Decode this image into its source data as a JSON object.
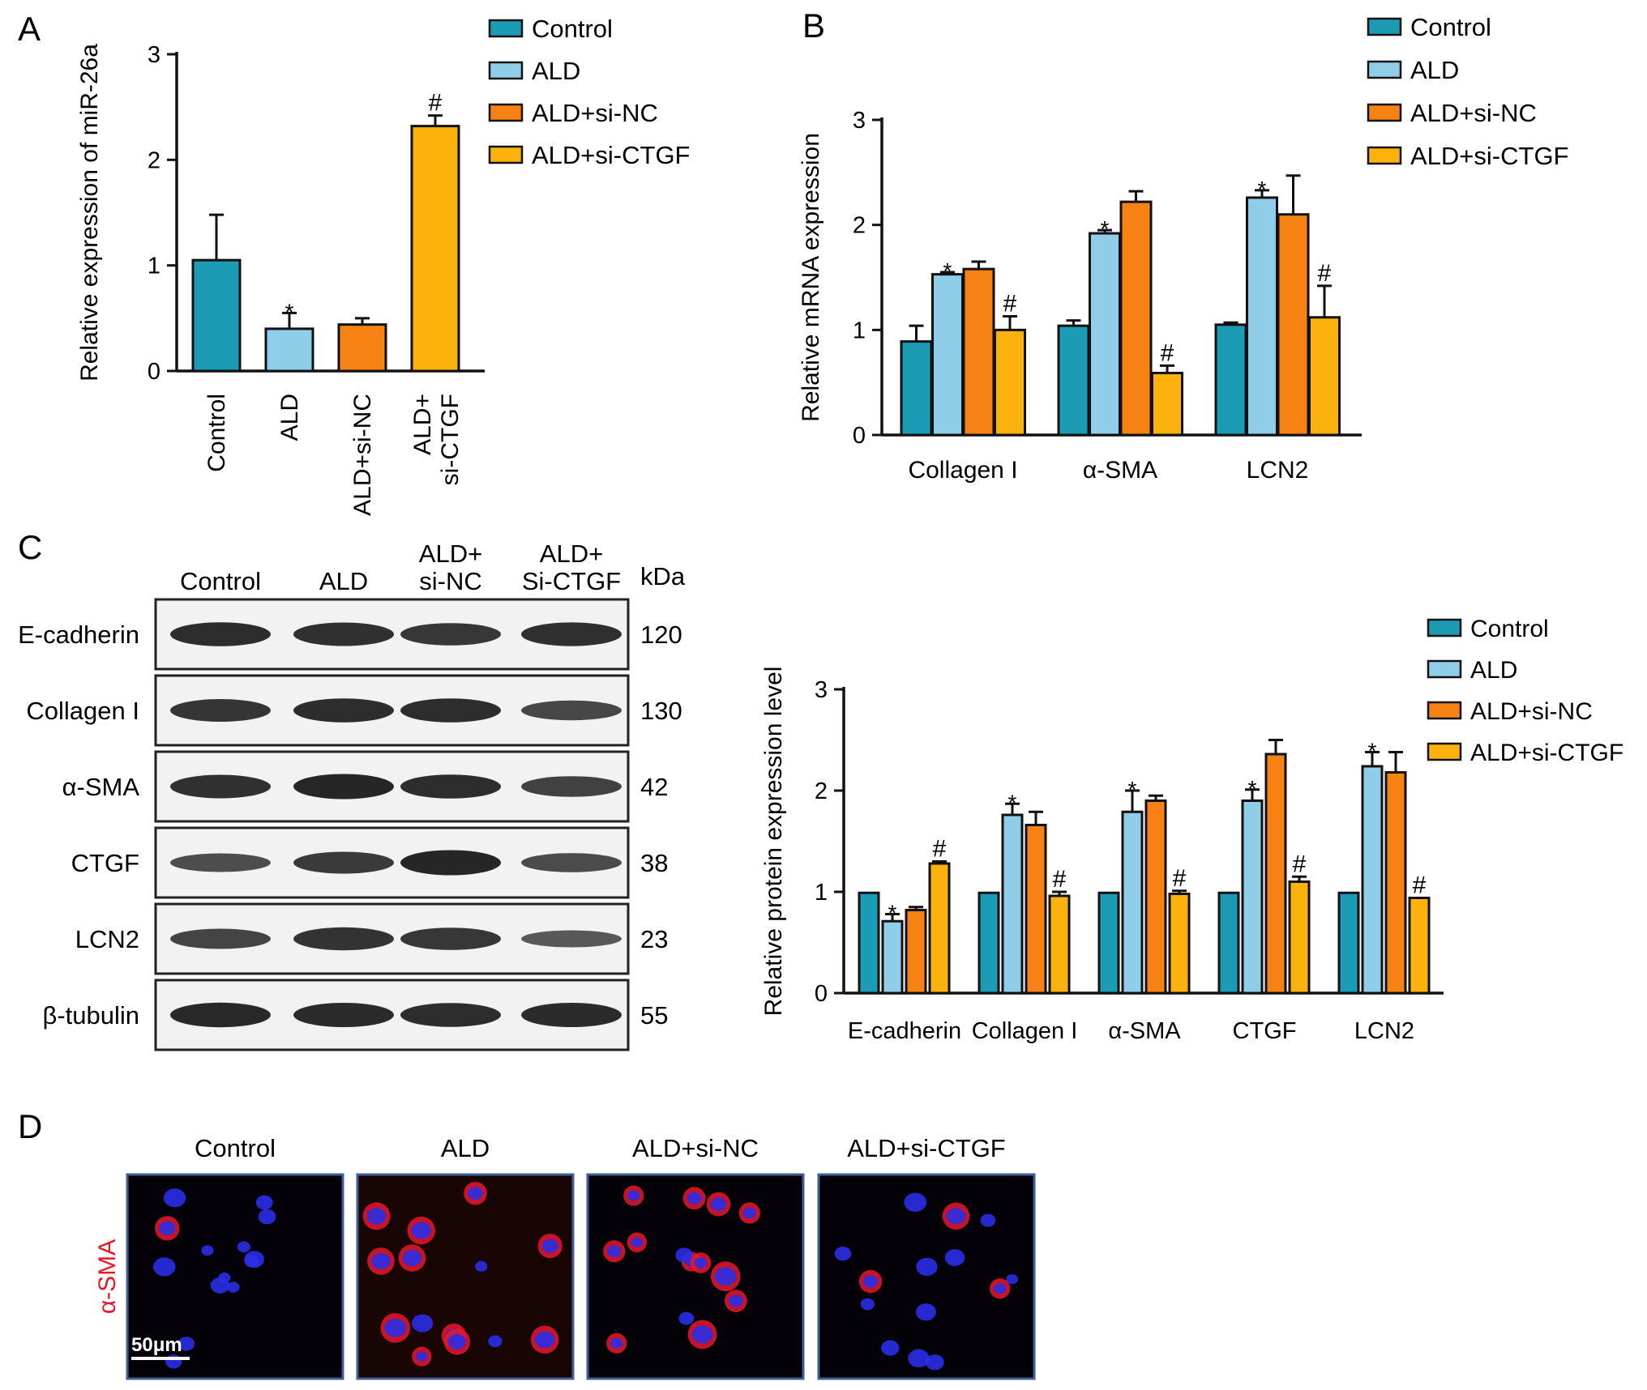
{
  "colors": {
    "Control": "#1b9bb4",
    "ALD": "#8fcde8",
    "ALD+si-NC": "#f58213",
    "ALD+si-CTGF": "#fbb20c",
    "axis": "#111111",
    "stain_red": "#e8182a",
    "nucleus_blue": "#2a2ee6",
    "frame_blue": "#3d5f96"
  },
  "panels": {
    "A": {
      "letter": "A"
    },
    "B": {
      "letter": "B"
    },
    "C": {
      "letter": "C",
      "blot": {
        "lanes": [
          "Control",
          "ALD",
          "ALD+\nsi-NC",
          "ALD+\nSi-CTGF"
        ],
        "kda_header": "kDa",
        "rows": [
          {
            "protein": "E-cadherin",
            "kda": "120",
            "intensity": [
              0.88,
              0.85,
              0.78,
              0.86
            ]
          },
          {
            "protein": "Collagen I",
            "kda": "130",
            "intensity": [
              0.8,
              0.88,
              0.88,
              0.62
            ]
          },
          {
            "protein": "α-SMA",
            "kda": "42",
            "intensity": [
              0.85,
              0.95,
              0.88,
              0.68
            ]
          },
          {
            "protein": "CTGF",
            "kda": "38",
            "intensity": [
              0.55,
              0.75,
              0.95,
              0.58
            ]
          },
          {
            "protein": "LCN2",
            "kda": "23",
            "intensity": [
              0.65,
              0.82,
              0.78,
              0.45
            ]
          },
          {
            "protein": "β-tubulin",
            "kda": "55",
            "intensity": [
              0.92,
              0.9,
              0.88,
              0.9
            ]
          }
        ]
      }
    },
    "D": {
      "letter": "D",
      "row_label": "α-SMA",
      "scale_bar": "50μm",
      "images": [
        {
          "title": "Control",
          "red_cells": 0.15
        },
        {
          "title": "ALD",
          "red_cells": 0.8
        },
        {
          "title": "ALD+si-NC",
          "red_cells": 0.9
        },
        {
          "title": "ALD+si-CTGF",
          "red_cells": 0.2
        }
      ]
    }
  },
  "chart_data": [
    {
      "id": "A",
      "type": "bar",
      "categories": [
        "Control",
        "ALD",
        "ALD+si-NC",
        "ALD+\nsi-CTGF"
      ],
      "values": [
        1.05,
        0.4,
        0.44,
        2.32
      ],
      "errors": [
        0.43,
        0.15,
        0.06,
        0.1
      ],
      "marks": [
        "",
        "*",
        "",
        "#"
      ],
      "ylabel": "Relative expression of miR-26a",
      "ylim": [
        0,
        3
      ],
      "yticks": [
        0,
        1,
        2,
        3
      ],
      "legend": [
        "Control",
        "ALD",
        "ALD+si-NC",
        "ALD+si-CTGF"
      ],
      "legend_position": "top-right"
    },
    {
      "id": "B",
      "type": "bar",
      "categories": [
        "Collagen I",
        "α-SMA",
        "LCN2"
      ],
      "series": [
        {
          "name": "Control",
          "values": [
            0.89,
            1.04,
            1.05
          ],
          "errors": [
            0.15,
            0.05,
            0.02
          ],
          "marks": [
            "",
            "",
            ""
          ]
        },
        {
          "name": "ALD",
          "values": [
            1.53,
            1.92,
            2.26
          ],
          "errors": [
            0.02,
            0.03,
            0.07
          ],
          "marks": [
            "*",
            "*",
            "*"
          ]
        },
        {
          "name": "ALD+si-NC",
          "values": [
            1.58,
            2.22,
            2.1
          ],
          "errors": [
            0.07,
            0.1,
            0.37
          ],
          "marks": [
            "",
            "",
            ""
          ]
        },
        {
          "name": "ALD+si-CTGF",
          "values": [
            1.0,
            0.59,
            1.12
          ],
          "errors": [
            0.13,
            0.07,
            0.3
          ],
          "marks": [
            "#",
            "#",
            "#"
          ]
        }
      ],
      "ylabel": "Relative mRNA expression",
      "ylim": [
        0,
        3
      ],
      "yticks": [
        0,
        1,
        2,
        3
      ],
      "legend_position": "top-right"
    },
    {
      "id": "C",
      "type": "bar",
      "categories": [
        "E-cadherin",
        "Collagen I",
        "α-SMA",
        "CTGF",
        "LCN2"
      ],
      "series": [
        {
          "name": "Control",
          "values": [
            0.99,
            0.99,
            0.99,
            0.99,
            0.99
          ],
          "errors": [
            0,
            0,
            0,
            0,
            0
          ],
          "marks": [
            "",
            "",
            "",
            "",
            ""
          ]
        },
        {
          "name": "ALD",
          "values": [
            0.71,
            1.76,
            1.79,
            1.9,
            2.24
          ],
          "errors": [
            0.07,
            0.11,
            0.21,
            0.11,
            0.14
          ],
          "marks": [
            "*",
            "*",
            "*",
            "*",
            "*"
          ]
        },
        {
          "name": "ALD+si-NC",
          "values": [
            0.82,
            1.66,
            1.9,
            2.36,
            2.18
          ],
          "errors": [
            0.03,
            0.13,
            0.05,
            0.14,
            0.2
          ],
          "marks": [
            "",
            "",
            "",
            "",
            ""
          ]
        },
        {
          "name": "ALD+si-CTGF",
          "values": [
            1.28,
            0.96,
            0.98,
            1.1,
            0.94
          ],
          "errors": [
            0.02,
            0.04,
            0.03,
            0.05,
            0
          ],
          "marks": [
            "#",
            "#",
            "#",
            "#",
            "#"
          ]
        }
      ],
      "ylabel": "Relative protein expression level",
      "ylim": [
        0,
        3
      ],
      "yticks": [
        0,
        1,
        2,
        3
      ],
      "legend_position": "top-right"
    }
  ]
}
